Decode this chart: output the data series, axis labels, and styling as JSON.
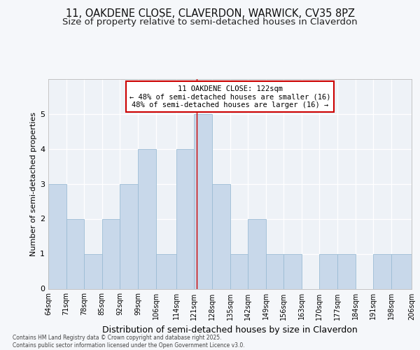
{
  "title1": "11, OAKDENE CLOSE, CLAVERDON, WARWICK, CV35 8PZ",
  "title2": "Size of property relative to semi-detached houses in Claverdon",
  "xlabel": "Distribution of semi-detached houses by size in Claverdon",
  "ylabel": "Number of semi-detached properties",
  "bin_labels": [
    "64sqm",
    "71sqm",
    "78sqm",
    "85sqm",
    "92sqm",
    "99sqm",
    "106sqm",
    "114sqm",
    "121sqm",
    "128sqm",
    "135sqm",
    "142sqm",
    "149sqm",
    "156sqm",
    "163sqm",
    "170sqm",
    "177sqm",
    "184sqm",
    "191sqm",
    "198sqm",
    "206sqm"
  ],
  "bin_edges": [
    64,
    71,
    78,
    85,
    92,
    99,
    106,
    114,
    121,
    128,
    135,
    142,
    149,
    156,
    163,
    170,
    177,
    184,
    191,
    198,
    206
  ],
  "counts": [
    3,
    2,
    1,
    2,
    3,
    4,
    1,
    4,
    5,
    3,
    1,
    2,
    1,
    1,
    0,
    1,
    1,
    0,
    1,
    1
  ],
  "property_value": 122,
  "bar_facecolor": "#c8d8ea",
  "bar_edgecolor": "#9bbcd4",
  "vline_color": "#cc0000",
  "annotation_box_edgecolor": "#cc0000",
  "annotation_box_facecolor": "#ffffff",
  "annotation_title": "11 OAKDENE CLOSE: 122sqm",
  "annotation_line1": "← 48% of semi-detached houses are smaller (16)",
  "annotation_line2": "48% of semi-detached houses are larger (16) →",
  "ylim": [
    0,
    6
  ],
  "yticks": [
    0,
    1,
    2,
    3,
    4,
    5,
    6
  ],
  "footnote": "Contains HM Land Registry data © Crown copyright and database right 2025.\nContains public sector information licensed under the Open Government Licence v3.0.",
  "bg_color": "#f5f7fa",
  "plot_bg_color": "#eef2f7",
  "grid_color": "#ffffff",
  "title1_fontsize": 10.5,
  "title2_fontsize": 9.5,
  "ann_fontsize": 7.5
}
